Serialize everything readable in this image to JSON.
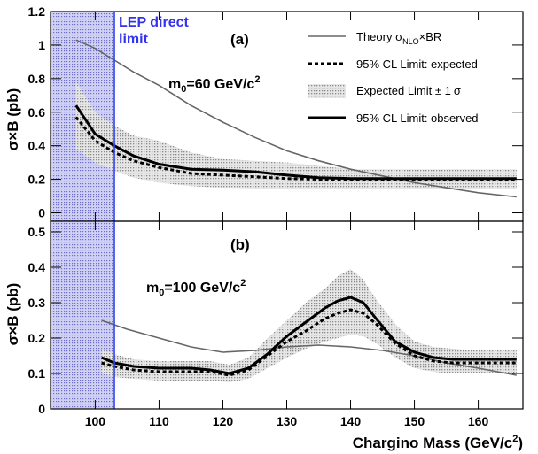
{
  "colors": {
    "lep_band": "#c9c9ef",
    "lep_line": "#3344ee",
    "lep_text": "#3333ee",
    "theory": "#666666",
    "expected": "#000000",
    "observed": "#000000",
    "error_band": "#c8c8c8"
  },
  "chart_data": [
    {
      "type": "line",
      "panel_label": "(a)",
      "annotation": {
        "prefix": "m",
        "sub": "0",
        "mid": "=60 GeV/c",
        "sup": "2"
      },
      "ylabel": {
        "a": "σ",
        "b": "×B (pb)"
      },
      "xlim": [
        93,
        167
      ],
      "ylim": [
        -0.05,
        1.2
      ],
      "yticks": [
        0,
        0.2,
        0.4,
        0.6,
        0.8,
        1,
        1.2
      ],
      "ytick_labels": [
        "0",
        "0.2",
        "0.4",
        "0.6",
        "0.8",
        "1",
        "1.2"
      ],
      "lep_direct_limit": {
        "x": 103,
        "label_lines": [
          "LEP direct",
          "limit"
        ]
      },
      "legend": {
        "theory": {
          "a": "Theory σ",
          "sub": "NLO",
          "b": "×BR"
        },
        "expected": "95% CL Limit: expected",
        "band": {
          "a": "Expected Limit ± 1",
          "b": "σ"
        },
        "observed": "95% CL Limit: observed"
      },
      "series": {
        "theory": {
          "x": [
            97,
            100,
            103,
            106,
            110,
            115,
            120,
            125,
            130,
            135,
            140,
            145,
            150,
            155,
            160,
            166
          ],
          "y": [
            1.03,
            0.98,
            0.91,
            0.84,
            0.76,
            0.64,
            0.54,
            0.45,
            0.37,
            0.31,
            0.26,
            0.22,
            0.18,
            0.15,
            0.12,
            0.095
          ]
        },
        "expected": {
          "x": [
            97,
            100,
            103,
            106,
            110,
            115,
            120,
            125,
            130,
            135,
            140,
            145,
            150,
            155,
            160,
            166
          ],
          "y": [
            0.57,
            0.43,
            0.36,
            0.31,
            0.27,
            0.235,
            0.225,
            0.215,
            0.205,
            0.2,
            0.195,
            0.195,
            0.195,
            0.195,
            0.195,
            0.195
          ]
        },
        "band_upper": {
          "x": [
            97,
            100,
            103,
            106,
            110,
            115,
            120,
            125,
            130,
            135,
            140,
            145,
            150,
            155,
            160,
            166
          ],
          "y": [
            0.78,
            0.6,
            0.52,
            0.46,
            0.43,
            0.36,
            0.32,
            0.31,
            0.3,
            0.28,
            0.26,
            0.26,
            0.26,
            0.26,
            0.26,
            0.26
          ]
        },
        "band_lower": {
          "x": [
            97,
            100,
            103,
            106,
            110,
            115,
            120,
            125,
            130,
            135,
            140,
            145,
            150,
            155,
            160,
            166
          ],
          "y": [
            0.38,
            0.3,
            0.25,
            0.21,
            0.18,
            0.16,
            0.15,
            0.145,
            0.14,
            0.14,
            0.14,
            0.14,
            0.14,
            0.14,
            0.14,
            0.14
          ]
        },
        "observed": {
          "x": [
            97,
            100,
            103,
            106,
            110,
            115,
            120,
            125,
            130,
            135,
            140,
            145,
            150,
            155,
            160,
            166
          ],
          "y": [
            0.64,
            0.47,
            0.4,
            0.34,
            0.29,
            0.26,
            0.255,
            0.245,
            0.225,
            0.21,
            0.205,
            0.205,
            0.205,
            0.205,
            0.205,
            0.205
          ]
        }
      }
    },
    {
      "type": "line",
      "panel_label": "(b)",
      "annotation": {
        "prefix": "m",
        "sub": "0",
        "mid": "=100 GeV/c",
        "sup": "2"
      },
      "ylabel": {
        "a": "σ",
        "b": "×B (pb)"
      },
      "xlabel": {
        "a": "Chargino Mass (GeV/c",
        "sup": "2",
        "b": ")"
      },
      "xlim": [
        93,
        167
      ],
      "ylim": [
        0,
        0.53
      ],
      "xticks": [
        100,
        110,
        120,
        130,
        140,
        150,
        160
      ],
      "xtick_labels": [
        "100",
        "110",
        "120",
        "130",
        "140",
        "150",
        "160"
      ],
      "yticks": [
        0,
        0.1,
        0.2,
        0.3,
        0.4,
        0.5
      ],
      "ytick_labels": [
        "0",
        "0.1",
        "0.2",
        "0.3",
        "0.4",
        "0.5"
      ],
      "series": {
        "theory": {
          "x": [
            101,
            105,
            110,
            115,
            120,
            125,
            130,
            135,
            140,
            145,
            150,
            155,
            160,
            166
          ],
          "y": [
            0.25,
            0.225,
            0.2,
            0.175,
            0.16,
            0.165,
            0.175,
            0.18,
            0.175,
            0.165,
            0.15,
            0.13,
            0.115,
            0.095
          ]
        },
        "expected": {
          "x": [
            101,
            103,
            106,
            110,
            115,
            118,
            121,
            124,
            127,
            130,
            133,
            136,
            138,
            140,
            142,
            144,
            147,
            150,
            153,
            156,
            160,
            166
          ],
          "y": [
            0.13,
            0.12,
            0.11,
            0.105,
            0.105,
            0.105,
            0.095,
            0.11,
            0.15,
            0.19,
            0.22,
            0.255,
            0.27,
            0.28,
            0.27,
            0.24,
            0.185,
            0.15,
            0.135,
            0.13,
            0.13,
            0.13
          ]
        },
        "band_upper": {
          "x": [
            101,
            103,
            106,
            110,
            115,
            118,
            121,
            124,
            127,
            130,
            133,
            136,
            138,
            140,
            142,
            144,
            147,
            150,
            153,
            156,
            160,
            166
          ],
          "y": [
            0.17,
            0.155,
            0.14,
            0.135,
            0.135,
            0.135,
            0.125,
            0.145,
            0.2,
            0.25,
            0.3,
            0.34,
            0.375,
            0.395,
            0.365,
            0.31,
            0.24,
            0.19,
            0.175,
            0.17,
            0.165,
            0.165
          ]
        },
        "band_lower": {
          "x": [
            101,
            103,
            106,
            110,
            115,
            118,
            121,
            124,
            127,
            130,
            133,
            136,
            138,
            140,
            142,
            144,
            147,
            150,
            153,
            156,
            160,
            166
          ],
          "y": [
            0.1,
            0.09,
            0.085,
            0.08,
            0.08,
            0.08,
            0.075,
            0.085,
            0.115,
            0.145,
            0.17,
            0.19,
            0.2,
            0.21,
            0.205,
            0.185,
            0.145,
            0.115,
            0.105,
            0.1,
            0.1,
            0.1
          ]
        },
        "observed": {
          "x": [
            101,
            103,
            106,
            110,
            115,
            118,
            121,
            124,
            127,
            130,
            133,
            136,
            138,
            140,
            142,
            144,
            147,
            150,
            153,
            156,
            160,
            166
          ],
          "y": [
            0.145,
            0.13,
            0.12,
            0.115,
            0.115,
            0.11,
            0.1,
            0.115,
            0.155,
            0.205,
            0.245,
            0.285,
            0.305,
            0.315,
            0.3,
            0.255,
            0.19,
            0.16,
            0.145,
            0.14,
            0.14,
            0.14
          ]
        }
      }
    }
  ]
}
